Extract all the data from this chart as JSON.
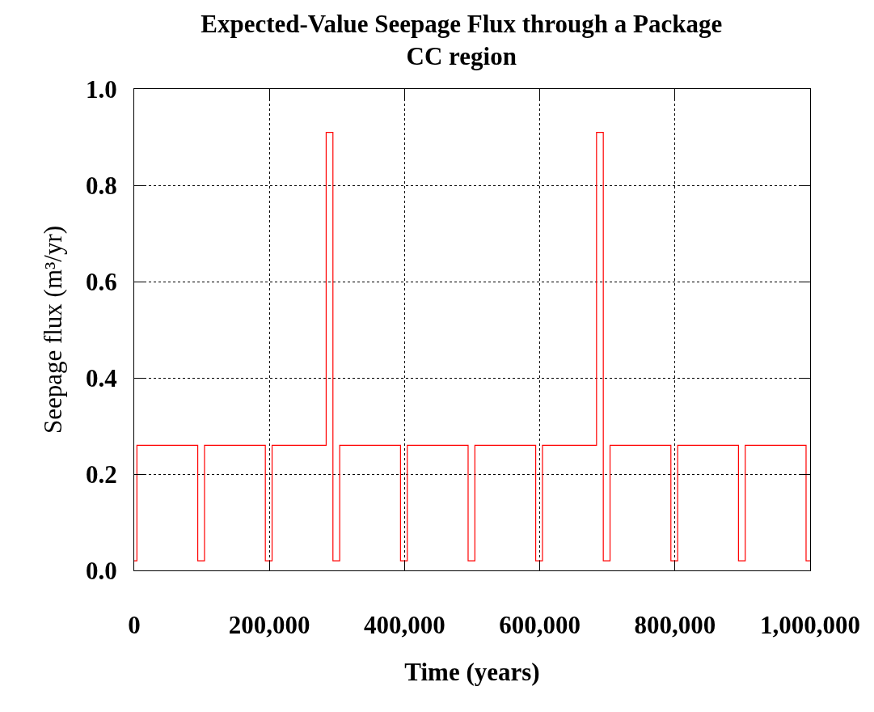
{
  "chart_data": {
    "type": "step",
    "title": "Expected-Value Seepage Flux through a Package",
    "subtitle": "CC region",
    "xlabel": "Time (years)",
    "ylabel": "Seepage flux (m³/yr)",
    "x": [
      0,
      4000,
      94000,
      104000,
      194000,
      204000,
      284000,
      294000,
      304000,
      394000,
      404000,
      494000,
      504000,
      594000,
      604000,
      684000,
      694000,
      704000,
      794000,
      804000,
      894000,
      904000,
      994000,
      1000000
    ],
    "series": [
      {
        "color": "#ff0000",
        "values": [
          0.02,
          0.26,
          0.02,
          0.26,
          0.02,
          0.26,
          0.91,
          0.02,
          0.26,
          0.02,
          0.26,
          0.02,
          0.26,
          0.02,
          0.26,
          0.91,
          0.02,
          0.26,
          0.02,
          0.26,
          0.02,
          0.26,
          0.02,
          0.02
        ]
      }
    ],
    "xlim": [
      0,
      1000000
    ],
    "xticks": [
      0,
      {
        "value": 200000,
        "label": "200,000"
      },
      {
        "value": 400000,
        "label": "400,000"
      },
      {
        "value": 600000,
        "label": "600,000"
      },
      {
        "value": 800000,
        "label": "800,000"
      },
      {
        "value": 1000000,
        "label": "1,000,000"
      }
    ],
    "ylim": [
      0,
      1
    ],
    "yticks": [
      {
        "value": 0,
        "label": "0.0"
      },
      0.2,
      0.4,
      0.6,
      0.8,
      {
        "value": 1,
        "label": "1.0"
      }
    ],
    "grid": true,
    "line_style": "solid",
    "marker": "none"
  }
}
